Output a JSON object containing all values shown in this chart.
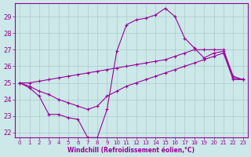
{
  "xlabel": "Windchill (Refroidissement éolien,°C)",
  "xlim": [
    -0.5,
    23.5
  ],
  "ylim": [
    21.7,
    29.8
  ],
  "yticks": [
    22,
    23,
    24,
    25,
    26,
    27,
    28,
    29
  ],
  "xticks": [
    0,
    1,
    2,
    3,
    4,
    5,
    6,
    7,
    8,
    9,
    10,
    11,
    12,
    13,
    14,
    15,
    16,
    17,
    18,
    19,
    20,
    21,
    22,
    23
  ],
  "bg_color": "#cce8e8",
  "grid_color": "#aacccc",
  "line_color": "#990099",
  "line1_x": [
    0,
    1,
    2,
    3,
    4,
    5,
    6,
    7,
    8,
    9,
    10,
    11,
    12,
    13,
    14,
    15,
    16,
    17,
    18,
    19,
    20,
    21,
    22,
    23
  ],
  "line1_y": [
    25.0,
    24.7,
    24.2,
    23.1,
    23.1,
    22.9,
    22.8,
    21.7,
    21.7,
    23.4,
    26.9,
    28.5,
    28.8,
    28.9,
    29.1,
    29.5,
    29.0,
    27.7,
    27.1,
    26.5,
    26.8,
    26.9,
    25.3,
    25.2
  ],
  "line2_x": [
    0,
    1,
    2,
    3,
    4,
    5,
    6,
    7,
    8,
    9,
    10,
    11,
    12,
    13,
    14,
    15,
    16,
    17,
    18,
    19,
    20,
    21,
    22,
    23
  ],
  "line2_y": [
    25.0,
    25.0,
    25.1,
    25.2,
    25.3,
    25.4,
    25.5,
    25.6,
    25.7,
    25.8,
    25.9,
    26.0,
    26.1,
    26.2,
    26.3,
    26.4,
    26.6,
    26.8,
    27.0,
    27.0,
    27.0,
    27.0,
    25.4,
    25.2
  ],
  "line3_x": [
    0,
    1,
    2,
    3,
    4,
    5,
    6,
    7,
    8,
    9,
    10,
    11,
    12,
    13,
    14,
    15,
    16,
    17,
    18,
    19,
    20,
    21,
    22,
    23
  ],
  "line3_y": [
    25.0,
    24.8,
    24.5,
    24.3,
    24.0,
    23.8,
    23.6,
    23.4,
    23.6,
    24.2,
    24.5,
    24.8,
    25.0,
    25.2,
    25.4,
    25.6,
    25.8,
    26.0,
    26.2,
    26.4,
    26.6,
    26.8,
    25.2,
    25.2
  ]
}
